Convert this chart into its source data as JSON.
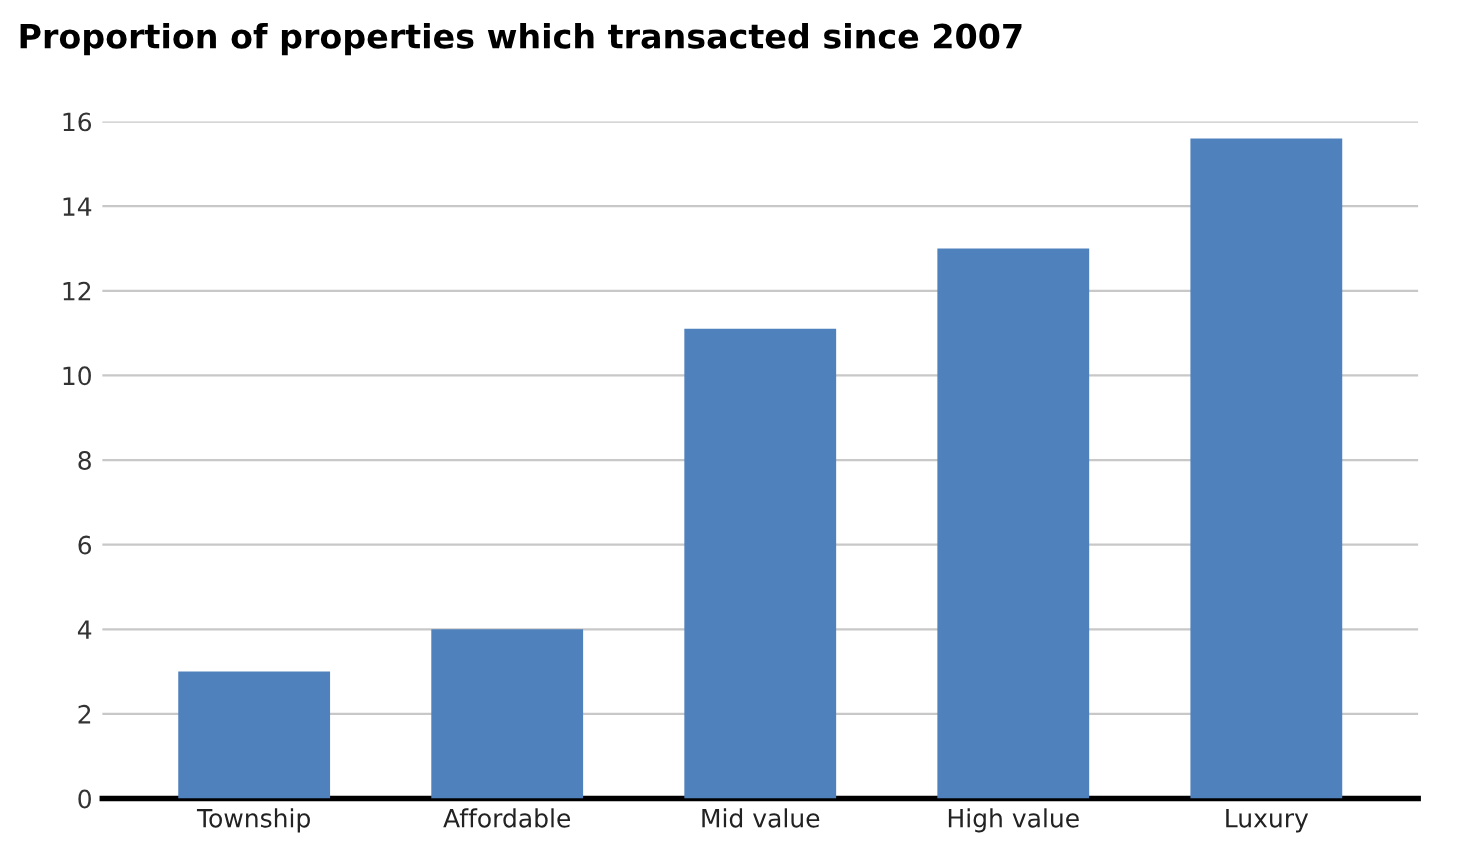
{
  "chart_data": {
    "type": "bar",
    "title": "Proportion of properties which transacted since 2007",
    "categories": [
      "Township",
      "Affordable",
      "Mid value",
      "High value",
      "Luxury"
    ],
    "values": [
      3,
      4,
      11.1,
      13,
      15.6
    ],
    "color": "#4f81bd",
    "ylim": [
      0,
      16
    ],
    "yticks": [
      0,
      2,
      4,
      6,
      8,
      10,
      12,
      14,
      16
    ],
    "grid": "y"
  }
}
